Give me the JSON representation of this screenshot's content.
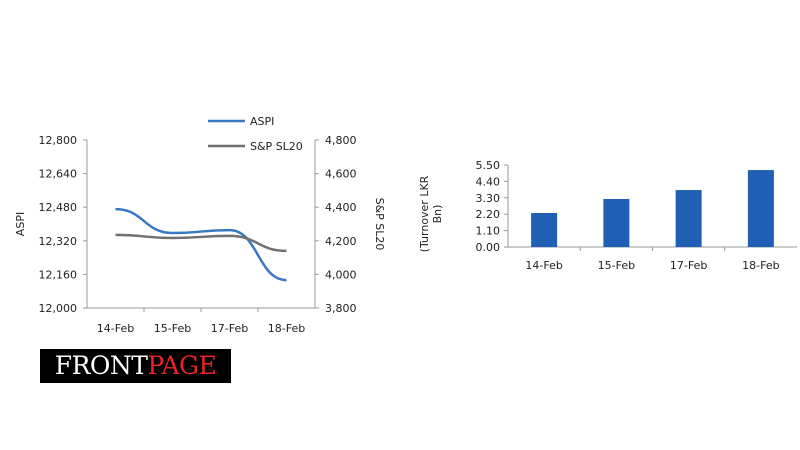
{
  "logo": {
    "part1": "FRONT",
    "part2": "PAGE"
  },
  "chart_data": [
    {
      "type": "line",
      "categories": [
        "14-Feb",
        "15-Feb",
        "17-Feb",
        "18-Feb"
      ],
      "series": [
        {
          "name": "ASPI",
          "axis": "left",
          "color": "#3a78c4",
          "values": [
            12471,
            12357,
            12371,
            12133
          ]
        },
        {
          "name": "S&P SL20",
          "axis": "right",
          "color": "#707070",
          "values": [
            4235,
            4217,
            4229,
            4140
          ]
        }
      ],
      "ylabel": "ASPI",
      "y2label": "S&P SL20",
      "ylim": [
        12000,
        12800
      ],
      "y2lim": [
        3800,
        4800
      ],
      "yticks": [
        "12,000",
        "12,160",
        "12,320",
        "12,480",
        "12,640",
        "12,800"
      ],
      "y2ticks": [
        "3,800",
        "4,000",
        "4,200",
        "4,400",
        "4,600",
        "4,800"
      ],
      "legend": "top-right"
    },
    {
      "type": "bar",
      "categories": [
        "14-Feb",
        "15-Feb",
        "17-Feb",
        "18-Feb"
      ],
      "values": [
        2.28,
        3.22,
        3.82,
        5.16
      ],
      "color": "#1f5fb4",
      "ylabel": "(Turnover LKR Bn)",
      "ylabel_lines": [
        "(Turnover LKR",
        "Bn)"
      ],
      "ylim": [
        0,
        5.5
      ],
      "yticks": [
        "0.00",
        "1.10",
        "2.20",
        "3.30",
        "4.40",
        "5.50"
      ]
    }
  ]
}
